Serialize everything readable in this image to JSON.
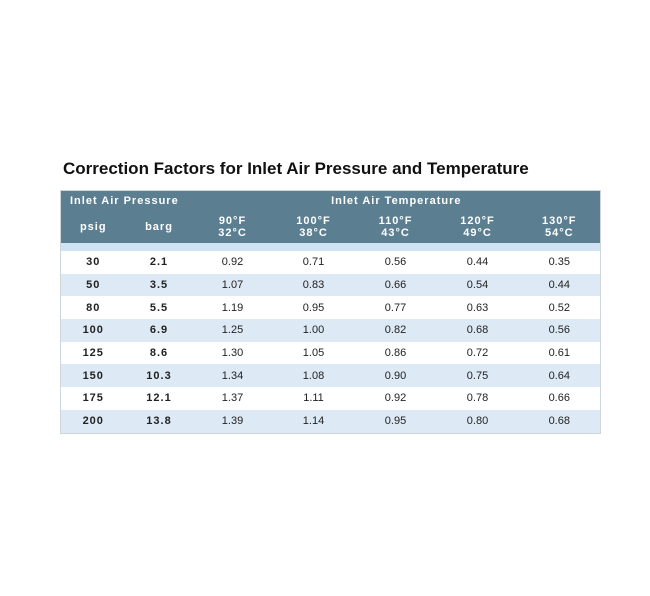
{
  "title": "Correction Factors for Inlet Air Pressure and Temperature",
  "table": {
    "group_headers": [
      "Inlet Air Pressure",
      "Inlet Air Temperature"
    ],
    "columns": [
      [
        "psig"
      ],
      [
        "barg"
      ],
      [
        "90°F",
        "32°C"
      ],
      [
        "100°F",
        "38°C"
      ],
      [
        "110°F",
        "43°C"
      ],
      [
        "120°F",
        "49°C"
      ],
      [
        "130°F",
        "54°C"
      ]
    ],
    "rows": [
      [
        "30",
        "2.1",
        "0.92",
        "0.71",
        "0.56",
        "0.44",
        "0.35"
      ],
      [
        "50",
        "3.5",
        "1.07",
        "0.83",
        "0.66",
        "0.54",
        "0.44"
      ],
      [
        "80",
        "5.5",
        "1.19",
        "0.95",
        "0.77",
        "0.63",
        "0.52"
      ],
      [
        "100",
        "6.9",
        "1.25",
        "1.00",
        "0.82",
        "0.68",
        "0.56"
      ],
      [
        "125",
        "8.6",
        "1.30",
        "1.05",
        "0.86",
        "0.72",
        "0.61"
      ],
      [
        "150",
        "10.3",
        "1.34",
        "1.08",
        "0.90",
        "0.75",
        "0.64"
      ],
      [
        "175",
        "12.1",
        "1.37",
        "1.11",
        "0.92",
        "0.78",
        "0.66"
      ],
      [
        "200",
        "13.8",
        "1.39",
        "1.14",
        "0.95",
        "0.80",
        "0.68"
      ]
    ]
  }
}
